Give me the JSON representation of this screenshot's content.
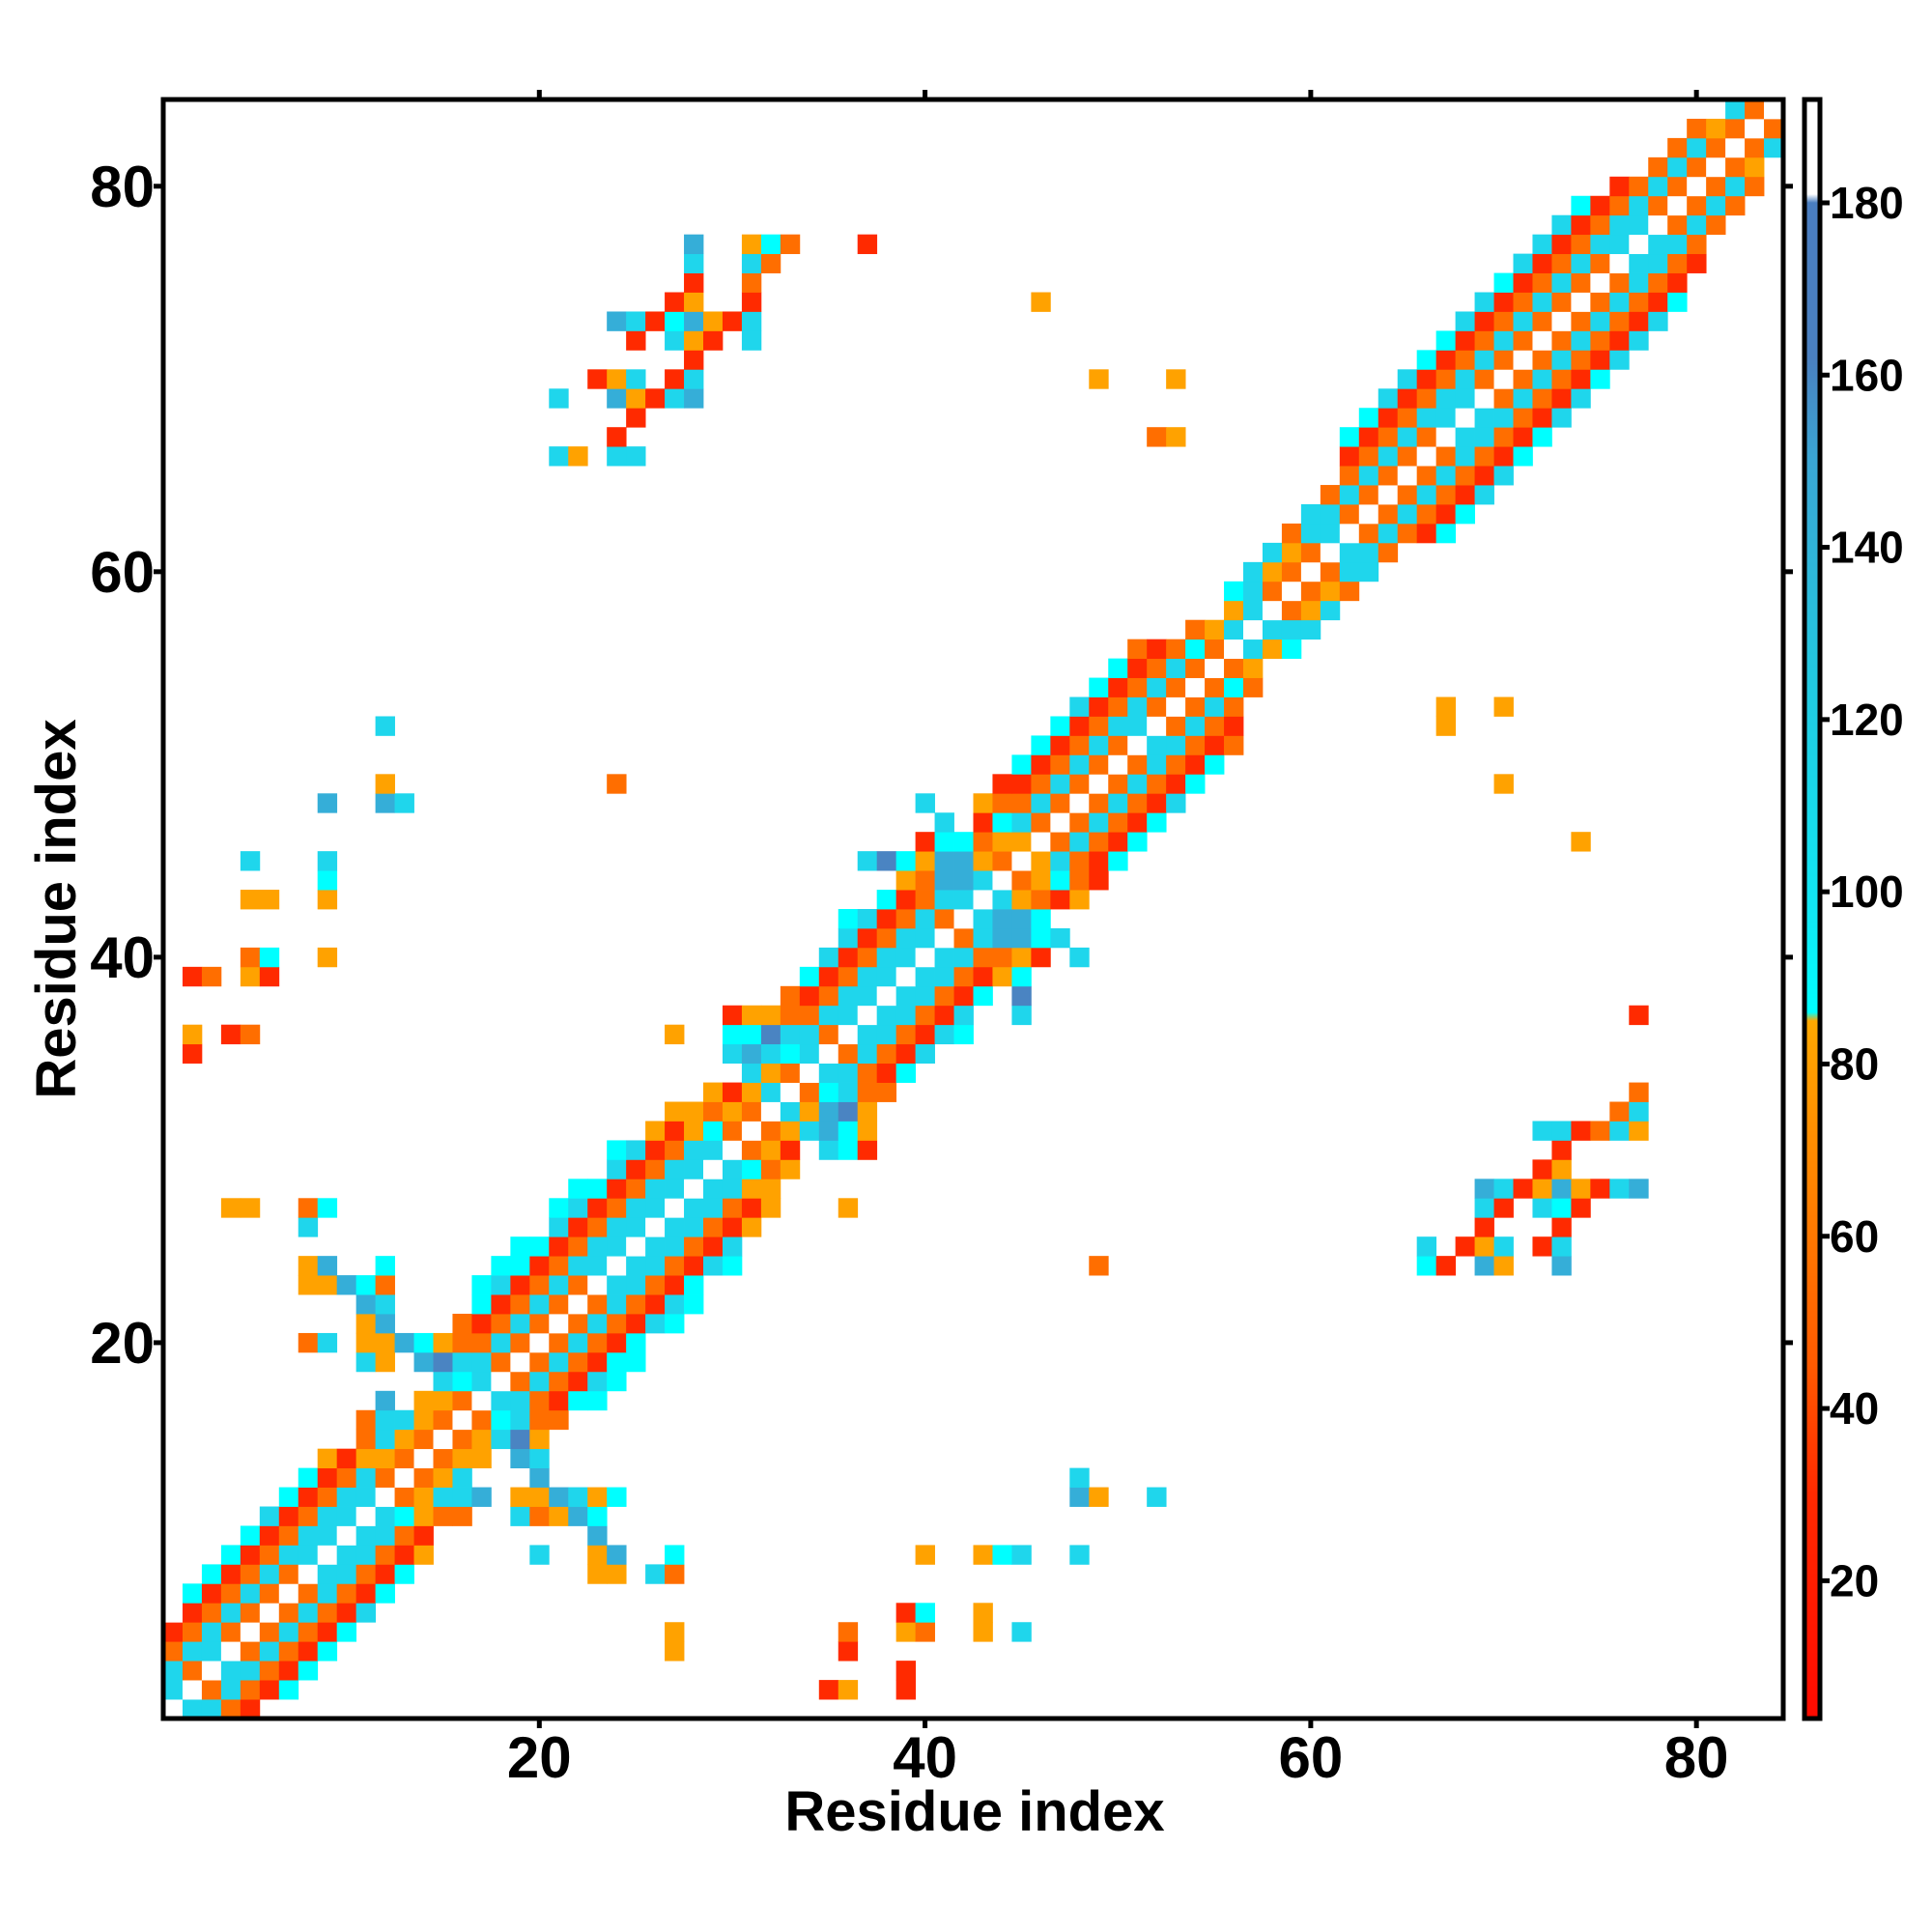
{
  "chart_data": {
    "type": "heatmap",
    "title": "",
    "xlabel": "Residue index",
    "ylabel": "Residue index",
    "xlim": [
      0.5,
      84.5
    ],
    "ylim": [
      0.5,
      84.5
    ],
    "xticks": [
      20,
      40,
      60,
      80
    ],
    "yticks": [
      20,
      40,
      60,
      80
    ],
    "grid": false,
    "colorbar": {
      "min": 4,
      "max": 192,
      "ticks": [
        20,
        40,
        60,
        80,
        100,
        120,
        140,
        160,
        180
      ],
      "stops": [
        {
          "value": 4,
          "color": "#ff0a00"
        },
        {
          "value": 30,
          "color": "#ff2a00"
        },
        {
          "value": 45,
          "color": "#ff5a00"
        },
        {
          "value": 60,
          "color": "#ff7800"
        },
        {
          "value": 85,
          "color": "#ffa800"
        },
        {
          "value": 86,
          "color": "#00ffff"
        },
        {
          "value": 97,
          "color": "#10e8f4"
        },
        {
          "value": 125,
          "color": "#22c8e0"
        },
        {
          "value": 150,
          "color": "#3aa6d4"
        },
        {
          "value": 162,
          "color": "#4a80c0"
        },
        {
          "value": 180,
          "color": "#4a7ec0"
        },
        {
          "value": 181,
          "color": "#ffffff"
        },
        {
          "value": 192,
          "color": "#ffffff"
        }
      ]
    },
    "value_codes": {
      "r": {
        "value": 20,
        "color": "#ff2a00"
      },
      "o": {
        "value": 45,
        "color": "#ff6e00"
      },
      "a": {
        "value": 75,
        "color": "#ffa200"
      },
      "C": {
        "value": 90,
        "color": "#00ffff"
      },
      "c": {
        "value": 110,
        "color": "#1fd6ec"
      },
      "b": {
        "value": 145,
        "color": "#35aed8"
      },
      "s": {
        "value": 170,
        "color": "#4a84c2"
      },
      ".": {
        "value": 185,
        "color": "#ffffff"
      }
    },
    "rows": [
      {
        "y": 1,
        "x": 1,
        "v": ".ccor"
      },
      {
        "y": 2,
        "x": 1,
        "v": "c.ocorC"
      },
      {
        "y": 2,
        "x": 35,
        "v": "ra__r"
      },
      {
        "y": 3,
        "x": 1,
        "v": "co.ccorC"
      },
      {
        "y": 3,
        "x": 39,
        "v": "r"
      },
      {
        "y": 4,
        "x": 1,
        "v": "occ.ocorC"
      },
      {
        "y": 4,
        "x": 27,
        "v": "a"
      },
      {
        "y": 4,
        "x": 36,
        "v": "r"
      },
      {
        "y": 5,
        "x": 1,
        "v": "roco.ocorC"
      },
      {
        "y": 5,
        "x": 27,
        "v": "a"
      },
      {
        "y": 5,
        "x": 36,
        "v": "o__ao__a_c"
      },
      {
        "y": 6,
        "x": 1,
        "v": ".roco.ocorc"
      },
      {
        "y": 6,
        "x": 39,
        "v": "rC"
      },
      {
        "y": 6,
        "x": 43,
        "v": "a"
      },
      {
        "y": 7,
        "x": 2,
        "v": "Croco.ocorC"
      },
      {
        "y": 8,
        "x": 3,
        "v": "Croco.ccorC"
      },
      {
        "y": 8,
        "x": 23,
        "v": "aa_co"
      },
      {
        "y": 9,
        "x": 4,
        "v": "Crocc.ccora_____c"
      },
      {
        "y": 9,
        "x": 23,
        "v": "ab__C"
      },
      {
        "y": 9,
        "x": 40,
        "v": "a__aCc__c"
      },
      {
        "y": 10,
        "x": 5,
        "v": "Crocc.ccor"
      },
      {
        "y": 10,
        "x": 23,
        "v": "b"
      },
      {
        "y": 11,
        "x": 6,
        "v": "crocc.cCaoo__co"
      },
      {
        "y": 11,
        "x": 21,
        "v": "abC"
      },
      {
        "y": 12,
        "x": 7,
        "v": "Crocc.oaccb_aa"
      },
      {
        "y": 12,
        "x": 21,
        "v": "bcaC"
      },
      {
        "y": 12,
        "x": 48,
        "v": "ba__c"
      },
      {
        "y": 13,
        "x": 8,
        "v": "Croco.oac___b"
      },
      {
        "y": 13,
        "x": 48,
        "v": "c"
      },
      {
        "y": 14,
        "x": 9,
        "v": "araao.oaa_bc"
      },
      {
        "y": 15,
        "x": 11,
        "v": "ocao.oacsa"
      },
      {
        "y": 16,
        "x": 11,
        "v": "occao.oCcoo"
      },
      {
        "y": 17,
        "x": 12,
        "v": "b_aao.ccorCC"
      },
      {
        "y": 18,
        "x": 15,
        "v": "cCc.ocorcC"
      },
      {
        "y": 19,
        "x": 11,
        "v": "ca_bscco.ocorCC"
      },
      {
        "y": 20,
        "x": 8,
        "v": "oc_aabCaooco.ocorC"
      },
      {
        "y": 21,
        "x": 11,
        "v": "ab___oroco.ocorcC"
      },
      {
        "y": 22,
        "x": 11,
        "v": "bc____Croco.ocorcC"
      },
      {
        "y": 23,
        "x": 8,
        "v": "aabCo____Ccroco.ccorC"
      },
      {
        "y": 24,
        "x": 8,
        "v": "ab__C_____CCrocc.ccorcC"
      },
      {
        "y": 24,
        "x": 49,
        "v": "o"
      },
      {
        "y": 24,
        "x": 66,
        "v": "Cr_ba__b"
      },
      {
        "y": 25,
        "x": 19,
        "v": "CCrocc.ccorc"
      },
      {
        "y": 25,
        "x": 66,
        "v": "c_rac_rc"
      },
      {
        "y": 26,
        "x": 8,
        "v": "c"
      },
      {
        "y": 26,
        "x": 21,
        "v": "crocc.ccora"
      },
      {
        "y": 26,
        "x": 69,
        "v": "r___r"
      },
      {
        "y": 27,
        "x": 4,
        "v": "aa__oC"
      },
      {
        "y": 27,
        "x": 21,
        "v": "Ccrocc.ccora___a"
      },
      {
        "y": 27,
        "x": 69,
        "v": "cr_cCr"
      },
      {
        "y": 28,
        "x": 22,
        "v": "CCrocc.ccaa"
      },
      {
        "y": 28,
        "x": 69,
        "v": "bcrabarcb"
      },
      {
        "y": 29,
        "x": 24,
        "v": "crocc.cCoa"
      },
      {
        "y": 29,
        "x": 72,
        "v": "ra"
      },
      {
        "y": 30,
        "x": 24,
        "v": "Ccrocc.oar_cCr"
      },
      {
        "y": 30,
        "x": 73,
        "v": "r"
      },
      {
        "y": 31,
        "x": 26,
        "v": "araCo.oacbCa"
      },
      {
        "y": 31,
        "x": 72,
        "v": "ccroca"
      },
      {
        "y": 32,
        "x": 27,
        "v": "aaoao.cabsa"
      },
      {
        "y": 32,
        "x": 76,
        "v": "oc"
      },
      {
        "y": 33,
        "x": 29,
        "v": "arac.oCcoo"
      },
      {
        "y": 33,
        "x": 77,
        "v": "o"
      },
      {
        "y": 34,
        "x": 31,
        "v": "cao.ccorC"
      },
      {
        "y": 35,
        "x": 2,
        "v": "r"
      },
      {
        "y": 35,
        "x": 30,
        "v": "cbcCc.ocorc"
      },
      {
        "y": 36,
        "x": 2,
        "v": "a_ro"
      },
      {
        "y": 36,
        "x": 27,
        "v": "a__CCscco.ccorcC"
      },
      {
        "y": 37,
        "x": 30,
        "v": "raaoocc.ccorc__c"
      },
      {
        "y": 37,
        "x": 77,
        "v": "r"
      },
      {
        "y": 38,
        "x": 33,
        "v": "orocc.ccorC_s"
      },
      {
        "y": 39,
        "x": 2,
        "v": "ro_ar"
      },
      {
        "y": 39,
        "x": 34,
        "v": "Crocc.ccoraC"
      },
      {
        "y": 40,
        "x": 5,
        "v": "oC__a"
      },
      {
        "y": 40,
        "x": 35,
        "v": "crocc.ccooar_c"
      },
      {
        "y": 41,
        "x": 36,
        "v": "crocc.ocbbCc"
      },
      {
        "y": 42,
        "x": 36,
        "v": "Ccroco.cbbC"
      },
      {
        "y": 43,
        "x": 5,
        "v": "aa__a"
      },
      {
        "y": 43,
        "x": 38,
        "v": "Crocc.caora"
      },
      {
        "y": 44,
        "x": 9,
        "v": "C"
      },
      {
        "y": 44,
        "x": 39,
        "v": "aobbc.oaCor"
      },
      {
        "y": 45,
        "x": 5,
        "v": "c___c"
      },
      {
        "y": 45,
        "x": 37,
        "v": "csCabbao.acorC"
      },
      {
        "y": 46,
        "x": 40,
        "v": "rCCoaa.ocorC"
      },
      {
        "y": 46,
        "x": 74,
        "v": "a"
      },
      {
        "y": 47,
        "x": 41,
        "v": "c_rCco.ocorC"
      },
      {
        "y": 48,
        "x": 9,
        "v": "b__bc"
      },
      {
        "y": 48,
        "x": 40,
        "v": "c__aooco.ocorc"
      },
      {
        "y": 49,
        "x": 12,
        "v": "a"
      },
      {
        "y": 49,
        "x": 24,
        "v": "o"
      },
      {
        "y": 49,
        "x": 44,
        "v": "rroco.ocorC"
      },
      {
        "y": 49,
        "x": 70,
        "v": "a"
      },
      {
        "y": 50,
        "x": 45,
        "v": "Croco.ocorC"
      },
      {
        "y": 51,
        "x": 46,
        "v": "Croco.ccoro"
      },
      {
        "y": 52,
        "x": 12,
        "v": "c"
      },
      {
        "y": 52,
        "x": 47,
        "v": "Crocc.ocor"
      },
      {
        "y": 52,
        "x": 67,
        "v": "a"
      },
      {
        "y": 53,
        "x": 48,
        "v": "croco.oco"
      },
      {
        "y": 53,
        "x": 67,
        "v": "a__a"
      },
      {
        "y": 54,
        "x": 49,
        "v": "Croco.oCo"
      },
      {
        "y": 55,
        "x": 50,
        "v": "Croco.oa"
      },
      {
        "y": 56,
        "x": 51,
        "v": "oroCo.caC"
      },
      {
        "y": 57,
        "x": 54,
        "v": "oac.ccc"
      },
      {
        "y": 58,
        "x": 56,
        "v": "ac.oac"
      },
      {
        "y": 59,
        "x": 56,
        "v": "Cco.oao"
      },
      {
        "y": 60,
        "x": 57,
        "v": "cao.occ"
      },
      {
        "y": 61,
        "x": 58,
        "v": "cao.cco"
      },
      {
        "y": 62,
        "x": 59,
        "v": "occ.ocorC"
      },
      {
        "y": 63,
        "x": 60,
        "v": "cco.ocorC"
      },
      {
        "y": 64,
        "x": 61,
        "v": "oco.ocorc"
      },
      {
        "y": 65,
        "x": 62,
        "v": "oco.ocorc"
      },
      {
        "y": 66,
        "x": 21,
        "v": "ca_cc"
      },
      {
        "y": 66,
        "x": 62,
        "v": "roco.ocorC"
      },
      {
        "y": 67,
        "x": 24,
        "v": "r"
      },
      {
        "y": 67,
        "x": 52,
        "v": "oa"
      },
      {
        "y": 67,
        "x": 62,
        "v": "Croco.ccorC"
      },
      {
        "y": 68,
        "x": 25,
        "v": "r"
      },
      {
        "y": 68,
        "x": 63,
        "v": "Crocc.ccorc"
      },
      {
        "y": 69,
        "x": 21,
        "v": "c__barcb"
      },
      {
        "y": 69,
        "x": 64,
        "v": "crocc.ocorc"
      },
      {
        "y": 70,
        "x": 23,
        "v": "rac_rc"
      },
      {
        "y": 70,
        "x": 49,
        "v": "a___a"
      },
      {
        "y": 70,
        "x": 65,
        "v": "croco.ocorC"
      },
      {
        "y": 71,
        "x": 28,
        "v": "r"
      },
      {
        "y": 71,
        "x": 66,
        "v": "Croco.ocorc"
      },
      {
        "y": 72,
        "x": 25,
        "v": "r_car_c"
      },
      {
        "y": 72,
        "x": 67,
        "v": "Croco.ocorc"
      },
      {
        "y": 73,
        "x": 24,
        "v": "bcrCbarc"
      },
      {
        "y": 73,
        "x": 68,
        "v": "croco.ocorc"
      },
      {
        "y": 74,
        "x": 27,
        "v": "ra__r"
      },
      {
        "y": 74,
        "x": 46,
        "v": "a"
      },
      {
        "y": 74,
        "x": 69,
        "v": "croco.ocorC"
      },
      {
        "y": 75,
        "x": 28,
        "v": "r__o"
      },
      {
        "y": 75,
        "x": 70,
        "v": "Croco.ocor"
      },
      {
        "y": 76,
        "x": 28,
        "v": "c__co"
      },
      {
        "y": 76,
        "x": 71,
        "v": "croco.ccor"
      },
      {
        "y": 77,
        "x": 28,
        "v": "b__aCo___r"
      },
      {
        "y": 77,
        "x": 72,
        "v": "crocc.cco"
      },
      {
        "y": 78,
        "x": 73,
        "v": "crocc.oco"
      },
      {
        "y": 79,
        "x": 74,
        "v": "Croco.oco"
      },
      {
        "y": 80,
        "x": 76,
        "v": "roco.oco"
      },
      {
        "y": 81,
        "x": 78,
        "v": "oco.oa"
      },
      {
        "y": 82,
        "x": 79,
        "v": "oco.oc"
      },
      {
        "y": 83,
        "x": 80,
        "v": "oao.o"
      },
      {
        "y": 84,
        "x": 82,
        "v": "co."
      }
    ]
  }
}
